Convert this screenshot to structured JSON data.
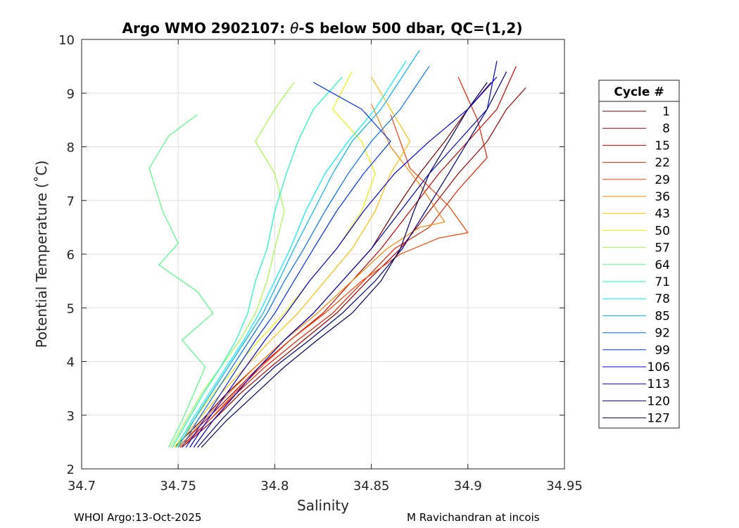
{
  "chart_data": {
    "type": "line",
    "title_parts": [
      "Argo WMO 2902107: ",
      "θ",
      "-S below 500 dbar,  QC=(1,2)"
    ],
    "xlabel": "Salinity",
    "ylabel": "Potential Temperature (˚C)",
    "xlim": [
      34.7,
      34.95
    ],
    "ylim": [
      2,
      10
    ],
    "xticks": [
      "34.7",
      "34.75",
      "34.8",
      "34.85",
      "34.9",
      "34.95"
    ],
    "yticks": [
      "2",
      "3",
      "4",
      "5",
      "6",
      "7",
      "8",
      "9",
      "10"
    ],
    "grid": true,
    "legend": {
      "title": "Cycle #",
      "position": "right-outside",
      "entries": [
        {
          "label": "1",
          "color": "#800000"
        },
        {
          "label": "8",
          "color": "#a00000"
        },
        {
          "label": "15",
          "color": "#cc0000"
        },
        {
          "label": "22",
          "color": "#e82000"
        },
        {
          "label": "29",
          "color": "#ff4000"
        },
        {
          "label": "36",
          "color": "#ff8000"
        },
        {
          "label": "43",
          "color": "#ffbf00"
        },
        {
          "label": "50",
          "color": "#f0f000"
        },
        {
          "label": "57",
          "color": "#a0ff40"
        },
        {
          "label": "64",
          "color": "#50ff80"
        },
        {
          "label": "71",
          "color": "#10ffc0"
        },
        {
          "label": "78",
          "color": "#00f0ff"
        },
        {
          "label": "85",
          "color": "#00b0ff"
        },
        {
          "label": "92",
          "color": "#0070ff"
        },
        {
          "label": "99",
          "color": "#0030ff"
        },
        {
          "label": "106",
          "color": "#0000ee"
        },
        {
          "label": "113",
          "color": "#0000c0"
        },
        {
          "label": "120",
          "color": "#000090"
        },
        {
          "label": "127",
          "color": "#000060"
        }
      ]
    },
    "series": [
      {
        "name": "cycle 1",
        "color": "#800000",
        "x": [
          34.748,
          34.762,
          34.775,
          34.79,
          34.805,
          34.82,
          34.835,
          34.85,
          34.862,
          34.875,
          34.888,
          34.9,
          34.912
        ],
        "y": [
          2.4,
          2.9,
          3.4,
          3.9,
          4.4,
          4.9,
          5.5,
          6.1,
          6.8,
          7.5,
          8.1,
          8.7,
          9.2
        ]
      },
      {
        "name": "cycle 8",
        "color": "#a00000",
        "x": [
          34.752,
          34.768,
          34.782,
          34.798,
          34.815,
          34.832,
          34.848,
          34.865,
          34.88,
          34.895,
          34.91,
          34.92,
          34.93
        ],
        "y": [
          2.4,
          2.9,
          3.4,
          3.9,
          4.4,
          4.9,
          5.5,
          6.1,
          6.8,
          7.5,
          8.1,
          8.7,
          9.1
        ]
      },
      {
        "name": "cycle 15",
        "color": "#cc0000",
        "x": [
          34.75,
          34.764,
          34.778,
          34.792,
          34.808,
          34.825,
          34.84,
          34.855,
          34.87,
          34.885,
          34.9,
          34.915,
          34.925
        ],
        "y": [
          2.4,
          2.9,
          3.4,
          3.9,
          4.4,
          4.9,
          5.5,
          6.1,
          6.8,
          7.5,
          8.1,
          8.7,
          9.5
        ]
      },
      {
        "name": "cycle 22",
        "color": "#e82000",
        "x": [
          34.751,
          34.766,
          34.78,
          34.795,
          34.812,
          34.83,
          34.846,
          34.862,
          34.88,
          34.895,
          34.91,
          34.905,
          34.895
        ],
        "y": [
          2.4,
          2.9,
          3.4,
          3.9,
          4.4,
          4.9,
          5.5,
          6.1,
          6.5,
          7.2,
          7.8,
          8.5,
          9.3
        ]
      },
      {
        "name": "cycle 29",
        "color": "#ff4000",
        "x": [
          34.752,
          34.766,
          34.779,
          34.793,
          34.808,
          34.826,
          34.845,
          34.865,
          34.885,
          34.9,
          34.89,
          34.87,
          34.86
        ],
        "y": [
          2.4,
          2.9,
          3.4,
          3.9,
          4.4,
          4.9,
          5.5,
          6.0,
          6.3,
          6.4,
          6.9,
          7.6,
          8.6
        ]
      },
      {
        "name": "cycle 36",
        "color": "#ff8000",
        "x": [
          34.75,
          34.763,
          34.776,
          34.79,
          34.805,
          34.822,
          34.84,
          34.858,
          34.875,
          34.888,
          34.875,
          34.86,
          34.85
        ],
        "y": [
          2.4,
          2.9,
          3.4,
          3.9,
          4.4,
          4.9,
          5.5,
          6.1,
          6.5,
          6.6,
          7.3,
          8.0,
          8.8
        ]
      },
      {
        "name": "cycle 43",
        "color": "#ffbf00",
        "x": [
          34.749,
          34.76,
          34.772,
          34.785,
          34.798,
          34.812,
          34.826,
          34.84,
          34.852,
          34.86,
          34.87,
          34.86,
          34.85
        ],
        "y": [
          2.4,
          2.9,
          3.4,
          3.9,
          4.4,
          4.9,
          5.5,
          6.1,
          6.8,
          7.5,
          8.1,
          8.7,
          9.3
        ]
      },
      {
        "name": "cycle 50",
        "color": "#f0f000",
        "x": [
          34.748,
          34.758,
          34.768,
          34.78,
          34.792,
          34.805,
          34.818,
          34.832,
          34.845,
          34.852,
          34.845,
          34.83,
          34.84
        ],
        "y": [
          2.4,
          2.9,
          3.4,
          3.9,
          4.4,
          4.9,
          5.5,
          6.1,
          6.8,
          7.5,
          8.1,
          8.7,
          9.4
        ]
      },
      {
        "name": "cycle 57",
        "color": "#a0ff40",
        "x": [
          34.746,
          34.754,
          34.762,
          34.772,
          34.782,
          34.79,
          34.796,
          34.8,
          34.805,
          34.8,
          34.79,
          34.8,
          34.81
        ],
        "y": [
          2.4,
          2.9,
          3.4,
          3.9,
          4.4,
          4.9,
          5.5,
          6.1,
          6.8,
          7.5,
          8.1,
          8.7,
          9.2
        ]
      },
      {
        "name": "cycle 64",
        "color": "#50ff80",
        "x": [
          34.745,
          34.752,
          34.758,
          34.764,
          34.752,
          34.768,
          34.76,
          34.74,
          34.75,
          34.742,
          34.735,
          34.745,
          34.76
        ],
        "y": [
          2.4,
          2.9,
          3.4,
          3.9,
          4.4,
          4.9,
          5.3,
          5.8,
          6.2,
          6.8,
          7.6,
          8.2,
          8.6
        ]
      },
      {
        "name": "cycle 71",
        "color": "#10ffc0",
        "x": [
          34.747,
          34.755,
          34.763,
          34.772,
          34.78,
          34.786,
          34.79,
          34.796,
          34.8,
          34.806,
          34.812,
          34.82,
          34.835
        ],
        "y": [
          2.4,
          2.9,
          3.4,
          3.9,
          4.4,
          4.9,
          5.5,
          6.1,
          6.8,
          7.5,
          8.1,
          8.7,
          9.3
        ]
      },
      {
        "name": "cycle 78",
        "color": "#00f0ff",
        "x": [
          34.749,
          34.757,
          34.766,
          34.775,
          34.784,
          34.792,
          34.8,
          34.808,
          34.816,
          34.826,
          34.838,
          34.852,
          34.868
        ],
        "y": [
          2.4,
          2.9,
          3.4,
          3.9,
          4.4,
          4.9,
          5.5,
          6.1,
          6.8,
          7.5,
          8.1,
          8.7,
          9.6
        ]
      },
      {
        "name": "cycle 85",
        "color": "#00b0ff",
        "x": [
          34.75,
          34.758,
          34.767,
          34.776,
          34.785,
          34.794,
          34.802,
          34.81,
          34.82,
          34.83,
          34.84,
          34.855,
          34.875
        ],
        "y": [
          2.4,
          2.9,
          3.4,
          3.9,
          4.4,
          4.9,
          5.5,
          6.1,
          6.8,
          7.5,
          8.1,
          8.7,
          9.8
        ]
      },
      {
        "name": "cycle 92",
        "color": "#0070ff",
        "x": [
          34.752,
          34.76,
          34.769,
          34.778,
          34.787,
          34.796,
          34.805,
          34.815,
          34.826,
          34.838,
          34.85,
          34.865,
          34.88
        ],
        "y": [
          2.4,
          2.9,
          3.4,
          3.9,
          4.4,
          4.9,
          5.5,
          6.1,
          6.8,
          7.5,
          8.1,
          8.7,
          9.5
        ]
      },
      {
        "name": "cycle 99",
        "color": "#0030ff",
        "x": [
          34.754,
          34.763,
          34.772,
          34.781,
          34.79,
          34.8,
          34.81,
          34.82,
          34.832,
          34.846,
          34.86,
          34.845,
          34.82
        ],
        "y": [
          2.4,
          2.9,
          3.4,
          3.9,
          4.4,
          4.9,
          5.5,
          6.1,
          6.8,
          7.5,
          8.1,
          8.7,
          9.2
        ]
      },
      {
        "name": "cycle 106",
        "color": "#0000ee",
        "x": [
          34.756,
          34.765,
          34.775,
          34.785,
          34.795,
          34.806,
          34.818,
          34.832,
          34.846,
          34.862,
          34.88,
          34.9,
          34.915
        ],
        "y": [
          2.4,
          2.9,
          3.4,
          3.9,
          4.4,
          4.9,
          5.5,
          6.1,
          6.8,
          7.5,
          8.1,
          8.7,
          9.3
        ]
      },
      {
        "name": "cycle 113",
        "color": "#0000c0",
        "x": [
          34.758,
          34.768,
          34.78,
          34.792,
          34.805,
          34.82,
          34.835,
          34.85,
          34.865,
          34.88,
          34.895,
          34.91,
          34.915
        ],
        "y": [
          2.4,
          2.9,
          3.4,
          3.9,
          4.4,
          4.9,
          5.5,
          6.1,
          6.8,
          7.5,
          8.1,
          8.7,
          9.6
        ]
      },
      {
        "name": "cycle 120",
        "color": "#000090",
        "x": [
          34.76,
          34.772,
          34.785,
          34.8,
          34.818,
          34.835,
          34.852,
          34.866,
          34.878,
          34.89,
          34.9,
          34.91,
          34.92
        ],
        "y": [
          2.4,
          2.9,
          3.4,
          3.9,
          4.4,
          4.9,
          5.5,
          6.1,
          6.8,
          7.5,
          8.1,
          8.7,
          9.4
        ]
      },
      {
        "name": "cycle 127",
        "color": "#000060",
        "x": [
          34.762,
          34.775,
          34.79,
          34.805,
          34.822,
          34.84,
          34.855,
          34.865,
          34.872,
          34.88,
          34.89,
          34.9,
          34.91
        ],
        "y": [
          2.4,
          2.9,
          3.4,
          3.9,
          4.4,
          4.9,
          5.5,
          6.1,
          6.8,
          7.5,
          8.1,
          8.7,
          9.2
        ]
      }
    ]
  },
  "footer": {
    "left": "WHOI Argo:13-Oct-2025",
    "right": "M Ravichandran at incois"
  }
}
